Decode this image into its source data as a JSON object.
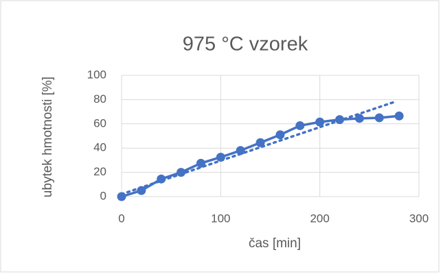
{
  "chart_data": {
    "type": "scatter-line",
    "title": "975 °C vzorek",
    "xlabel": "čas [min]",
    "ylabel": "ubytek hmotnosti [%]",
    "x": [
      0,
      20,
      40,
      60,
      80,
      100,
      120,
      140,
      160,
      180,
      200,
      220,
      240,
      260,
      280
    ],
    "series": [
      {
        "color": "#4472c4",
        "values": [
          0,
          5,
          14.5,
          20,
          27.5,
          32.5,
          38,
          44.5,
          51,
          58.5,
          61.5,
          63.5,
          64.5,
          65,
          66.5
        ]
      }
    ],
    "trendline": {
      "color": "#4472c4",
      "x": [
        0,
        275
      ],
      "values": [
        2,
        78
      ]
    },
    "xlim": [
      0,
      300
    ],
    "xticks": [
      0,
      100,
      200,
      300
    ],
    "ylim": [
      0,
      100
    ],
    "yticks": [
      0,
      20,
      40,
      60,
      80,
      100
    ],
    "grid": true
  }
}
